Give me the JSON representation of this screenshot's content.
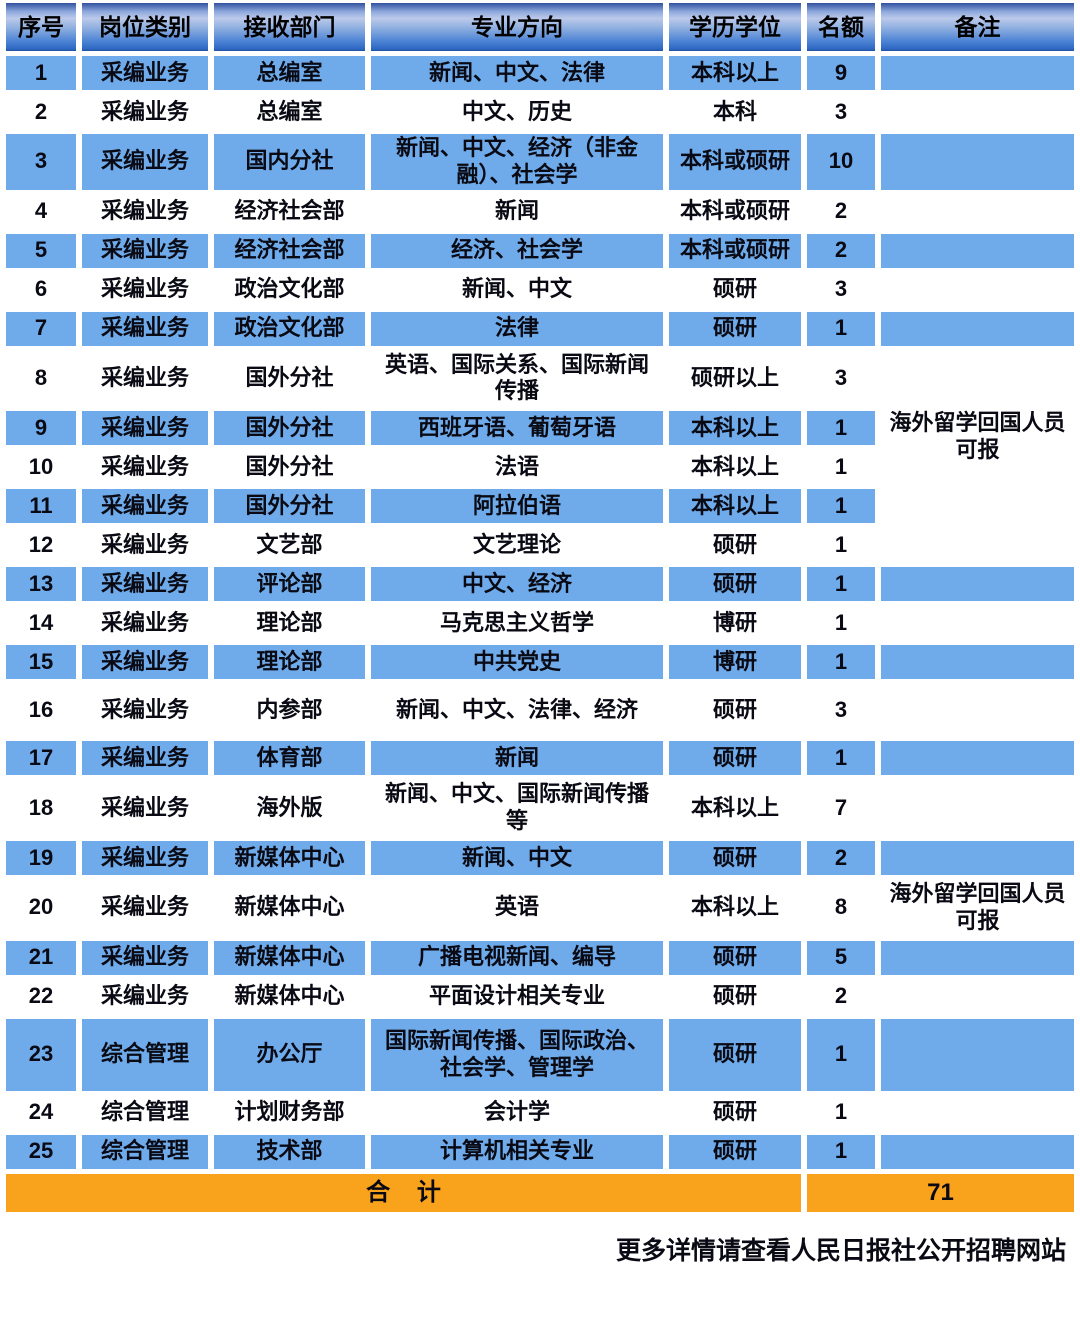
{
  "table": {
    "headers": [
      "序号",
      "岗位类别",
      "接收部门",
      "专业方向",
      "学历学位",
      "名额",
      "备注"
    ],
    "rows": [
      {
        "cells": [
          "1",
          "采编业务",
          "总编室",
          "新闻、中文、法律",
          "本科以上",
          "9"
        ],
        "remark": ""
      },
      {
        "cells": [
          "2",
          "采编业务",
          "总编室",
          "中文、历史",
          "本科",
          "3"
        ],
        "remark": ""
      },
      {
        "cells": [
          "3",
          "采编业务",
          "国内分社",
          "新闻、中文、经济（非金融）、社会学",
          "本科或硕研",
          "10"
        ],
        "remark": ""
      },
      {
        "cells": [
          "4",
          "采编业务",
          "经济社会部",
          "新闻",
          "本科或硕研",
          "2"
        ],
        "remark": ""
      },
      {
        "cells": [
          "5",
          "采编业务",
          "经济社会部",
          "经济、社会学",
          "本科或硕研",
          "2"
        ],
        "remark": ""
      },
      {
        "cells": [
          "6",
          "采编业务",
          "政治文化部",
          "新闻、中文",
          "硕研",
          "3"
        ],
        "remark": ""
      },
      {
        "cells": [
          "7",
          "采编业务",
          "政治文化部",
          "法律",
          "硕研",
          "1"
        ],
        "remark": ""
      },
      {
        "cells": [
          "8",
          "采编业务",
          "国外分社",
          "英语、国际关系、国际新闻传播",
          "硕研以上",
          "3"
        ],
        "remark": "海外留学回国人员可报",
        "remark_span": 4
      },
      {
        "cells": [
          "9",
          "采编业务",
          "国外分社",
          "西班牙语、葡萄牙语",
          "本科以上",
          "1"
        ],
        "remark": null
      },
      {
        "cells": [
          "10",
          "采编业务",
          "国外分社",
          "法语",
          "本科以上",
          "1"
        ],
        "remark": null
      },
      {
        "cells": [
          "11",
          "采编业务",
          "国外分社",
          "阿拉伯语",
          "本科以上",
          "1"
        ],
        "remark": null
      },
      {
        "cells": [
          "12",
          "采编业务",
          "文艺部",
          "文艺理论",
          "硕研",
          "1"
        ],
        "remark": ""
      },
      {
        "cells": [
          "13",
          "采编业务",
          "评论部",
          "中文、经济",
          "硕研",
          "1"
        ],
        "remark": ""
      },
      {
        "cells": [
          "14",
          "采编业务",
          "理论部",
          "马克思主义哲学",
          "博研",
          "1"
        ],
        "remark": ""
      },
      {
        "cells": [
          "15",
          "采编业务",
          "理论部",
          "中共党史",
          "博研",
          "1"
        ],
        "remark": ""
      },
      {
        "cells": [
          "16",
          "采编业务",
          "内参部",
          "新闻、中文、法律、经济",
          "硕研",
          "3"
        ],
        "remark": ""
      },
      {
        "cells": [
          "17",
          "采编业务",
          "体育部",
          "新闻",
          "硕研",
          "1"
        ],
        "remark": ""
      },
      {
        "cells": [
          "18",
          "采编业务",
          "海外版",
          "新闻、中文、国际新闻传播等",
          "本科以上",
          "7"
        ],
        "remark": ""
      },
      {
        "cells": [
          "19",
          "采编业务",
          "新媒体中心",
          "新闻、中文",
          "硕研",
          "2"
        ],
        "remark": ""
      },
      {
        "cells": [
          "20",
          "采编业务",
          "新媒体中心",
          "英语",
          "本科以上",
          "8"
        ],
        "remark": "海外留学回国人员可报"
      },
      {
        "cells": [
          "21",
          "采编业务",
          "新媒体中心",
          "广播电视新闻、编导",
          "硕研",
          "5"
        ],
        "remark": ""
      },
      {
        "cells": [
          "22",
          "采编业务",
          "新媒体中心",
          "平面设计相关专业",
          "硕研",
          "2"
        ],
        "remark": ""
      },
      {
        "cells": [
          "23",
          "综合管理",
          "办公厅",
          "国际新闻传播、国际政治、社会学、管理学",
          "硕研",
          "1"
        ],
        "remark": ""
      },
      {
        "cells": [
          "24",
          "综合管理",
          "计划财务部",
          "会计学",
          "硕研",
          "1"
        ],
        "remark": ""
      },
      {
        "cells": [
          "25",
          "综合管理",
          "技术部",
          "计算机相关专业",
          "硕研",
          "1"
        ],
        "remark": ""
      }
    ],
    "total_label": "合 计",
    "total_value": "71"
  },
  "footer": {
    "note": "更多详情请查看人民日报社公开招聘网站"
  },
  "colors": {
    "row_blue": "#6fabea",
    "header_gradient_top": "#31519f",
    "header_gradient_light": "#bcc9ea",
    "header_gradient_bottom": "#2d67c2",
    "total_orange": "#f9a21b",
    "grid_gap": "#ffffff",
    "text": "#0a0a14"
  }
}
